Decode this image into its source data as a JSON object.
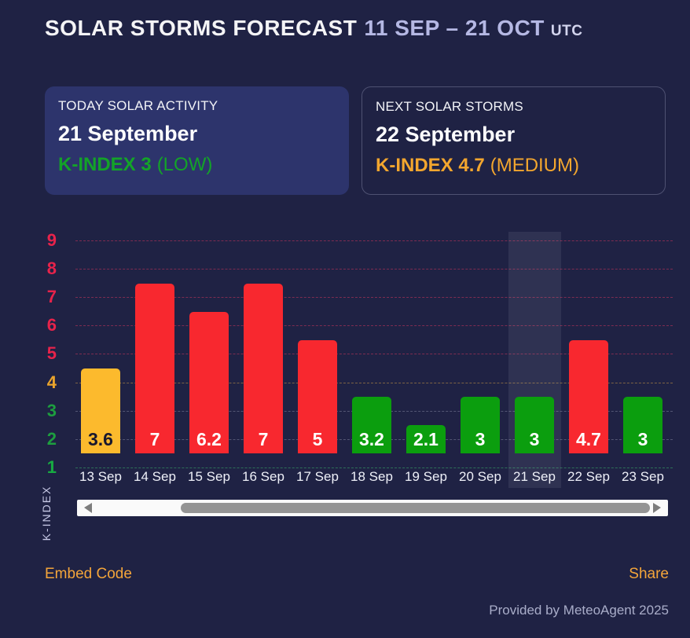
{
  "header": {
    "title": "SOLAR STORMS FORECAST",
    "date_range": "11 SEP – 21 OCT",
    "timezone": "UTC"
  },
  "cards": {
    "today": {
      "label": "TODAY SOLAR ACTIVITY",
      "date": "21 September",
      "kindex": "K-INDEX 3",
      "level": "(LOW)",
      "accent_color": "#13a328"
    },
    "next": {
      "label": "NEXT SOLAR STORMS",
      "date": "22 September",
      "kindex": "K-INDEX 4.7",
      "level": "(MEDIUM)",
      "accent_color": "#f3a62e"
    }
  },
  "chart_data": {
    "type": "bar",
    "title": "",
    "xlabel": "",
    "ylabel": "K-INDEX",
    "ylim": [
      1,
      9
    ],
    "grid": "horizontal-dashed",
    "legend": "none",
    "categories": [
      "13 Sep",
      "14 Sep",
      "15 Sep",
      "16 Sep",
      "17 Sep",
      "18 Sep",
      "19 Sep",
      "20 Sep",
      "21 Sep",
      "22 Sep",
      "23 Sep"
    ],
    "values": [
      3.6,
      7,
      6.2,
      7,
      5,
      3.2,
      2.1,
      3,
      3,
      4.7,
      3
    ],
    "highlighted_category": "21 Sep",
    "highlight_index": 8,
    "bars": [
      {
        "category": "13 Sep",
        "value": 3.6,
        "display": "3.6",
        "color": "#fcba2d",
        "label_color": "#18182e"
      },
      {
        "category": "14 Sep",
        "value": 7,
        "display": "7",
        "color": "#f8282f",
        "label_color": "#ffffff"
      },
      {
        "category": "15 Sep",
        "value": 6.2,
        "display": "6.2",
        "color": "#f8282f",
        "label_color": "#ffffff"
      },
      {
        "category": "16 Sep",
        "value": 7,
        "display": "7",
        "color": "#f8282f",
        "label_color": "#ffffff"
      },
      {
        "category": "17 Sep",
        "value": 5,
        "display": "5",
        "color": "#f8282f",
        "label_color": "#ffffff"
      },
      {
        "category": "18 Sep",
        "value": 3.2,
        "display": "3.2",
        "color": "#0b9e0e",
        "label_color": "#ffffff"
      },
      {
        "category": "19 Sep",
        "value": 2.1,
        "display": "2.1",
        "color": "#0b9e0e",
        "label_color": "#ffffff"
      },
      {
        "category": "20 Sep",
        "value": 3,
        "display": "3",
        "color": "#0b9e0e",
        "label_color": "#ffffff"
      },
      {
        "category": "21 Sep",
        "value": 3,
        "display": "3",
        "color": "#0b9e0e",
        "label_color": "#ffffff"
      },
      {
        "category": "22 Sep",
        "value": 4.7,
        "display": "4.7",
        "color": "#f8282f",
        "label_color": "#ffffff"
      },
      {
        "category": "23 Sep",
        "value": 3,
        "display": "3",
        "color": "#0b9e0e",
        "label_color": "#ffffff"
      }
    ],
    "yticks": [
      {
        "value": 9,
        "label": "9",
        "label_color": "#e7234b",
        "grid_color": "rgba(255,60,100,0.42)"
      },
      {
        "value": 8,
        "label": "8",
        "label_color": "#e7234b",
        "grid_color": "rgba(255,60,100,0.42)"
      },
      {
        "value": 7,
        "label": "7",
        "label_color": "#e7234b",
        "grid_color": "rgba(255,60,100,0.42)"
      },
      {
        "value": 6,
        "label": "6",
        "label_color": "#e7234b",
        "grid_color": "rgba(255,60,100,0.42)"
      },
      {
        "value": 5,
        "label": "5",
        "label_color": "#e7234b",
        "grid_color": "rgba(255,60,100,0.42)"
      },
      {
        "value": 4,
        "label": "4",
        "label_color": "#eaa42c",
        "grid_color": "rgba(240,180,70,0.45)"
      },
      {
        "value": 3,
        "label": "3",
        "label_color": "#1d9e3f",
        "grid_color": "rgba(205,210,230,0.30)"
      },
      {
        "value": 2,
        "label": "2",
        "label_color": "#1d9e3f",
        "grid_color": "rgba(205,210,230,0.30)"
      },
      {
        "value": 1,
        "label": "1",
        "label_color": "#17ab42",
        "grid_color": "rgba(60,190,110,0.50)"
      }
    ]
  },
  "footer": {
    "embed": "Embed Code",
    "share": "Share",
    "credit": "Provided by MeteoAgent 2025"
  }
}
